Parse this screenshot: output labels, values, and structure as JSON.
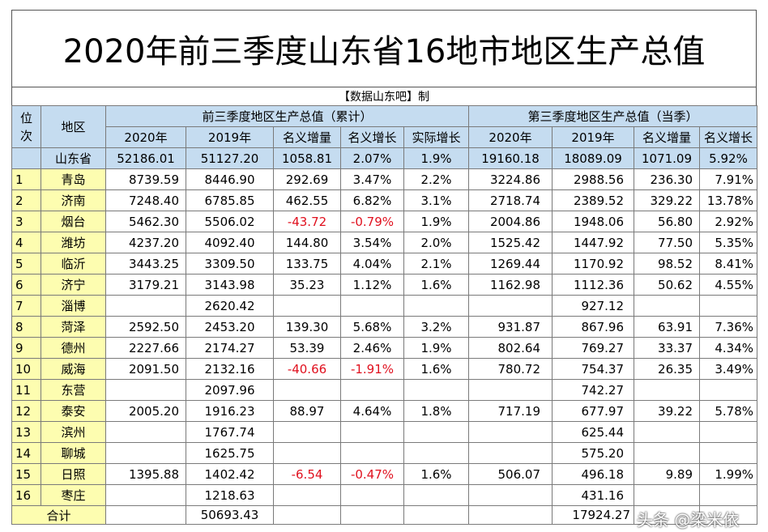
{
  "title": "2020年前三季度山东省16地市地区生产总值",
  "source": "【数据山东吧】制",
  "headers": {
    "rank": "位次",
    "region": "地区",
    "group_cumulative": "前三季度地区生产总值（累计）",
    "group_quarter": "第三季度地区生产总值（当季）",
    "sub": [
      "2020年",
      "2019年",
      "名义增量",
      "名义增长",
      "实际增长",
      "2020年",
      "2019年",
      "名义增量",
      "名义增长"
    ]
  },
  "province": {
    "name": "山东省",
    "values": [
      "52186.01",
      "51127.20",
      "1058.81",
      "2.07%",
      "1.9%",
      "19160.18",
      "18089.09",
      "1071.09",
      "5.92%"
    ]
  },
  "rows": [
    {
      "rank": "1",
      "name": "青岛",
      "v": [
        "8739.59",
        "8446.90",
        "292.69",
        "3.47%",
        "2.2%",
        "3224.86",
        "2988.56",
        "236.30",
        "7.91%"
      ]
    },
    {
      "rank": "2",
      "name": "济南",
      "v": [
        "7248.40",
        "6785.85",
        "462.55",
        "6.82%",
        "3.1%",
        "2718.74",
        "2389.52",
        "329.22",
        "13.78%"
      ]
    },
    {
      "rank": "3",
      "name": "烟台",
      "v": [
        "5462.30",
        "5506.02",
        "-43.72",
        "-0.79%",
        "1.9%",
        "2004.86",
        "1948.06",
        "56.80",
        "2.92%"
      ]
    },
    {
      "rank": "4",
      "name": "潍坊",
      "v": [
        "4237.20",
        "4092.40",
        "144.80",
        "3.54%",
        "2.0%",
        "1525.42",
        "1447.92",
        "77.50",
        "5.35%"
      ]
    },
    {
      "rank": "5",
      "name": "临沂",
      "v": [
        "3443.25",
        "3309.50",
        "133.75",
        "4.04%",
        "2.1%",
        "1269.44",
        "1170.92",
        "98.52",
        "8.41%"
      ]
    },
    {
      "rank": "6",
      "name": "济宁",
      "v": [
        "3179.21",
        "3143.98",
        "35.23",
        "1.12%",
        "1.6%",
        "1162.98",
        "1112.36",
        "50.62",
        "4.55%"
      ]
    },
    {
      "rank": "7",
      "name": "淄博",
      "v": [
        "",
        "2620.42",
        "",
        "",
        "",
        "",
        "927.12",
        "",
        ""
      ]
    },
    {
      "rank": "8",
      "name": "菏泽",
      "v": [
        "2592.50",
        "2453.20",
        "139.30",
        "5.68%",
        "3.2%",
        "931.87",
        "867.96",
        "63.91",
        "7.36%"
      ]
    },
    {
      "rank": "9",
      "name": "德州",
      "v": [
        "2227.66",
        "2174.27",
        "53.39",
        "2.46%",
        "1.9%",
        "802.64",
        "769.27",
        "33.37",
        "4.34%"
      ]
    },
    {
      "rank": "10",
      "name": "威海",
      "v": [
        "2091.50",
        "2132.16",
        "-40.66",
        "-1.91%",
        "1.6%",
        "780.72",
        "754.37",
        "26.35",
        "3.49%"
      ]
    },
    {
      "rank": "11",
      "name": "东营",
      "v": [
        "",
        "2097.96",
        "",
        "",
        "",
        "",
        "742.27",
        "",
        ""
      ]
    },
    {
      "rank": "12",
      "name": "泰安",
      "v": [
        "2005.20",
        "1916.23",
        "88.97",
        "4.64%",
        "1.8%",
        "717.19",
        "677.97",
        "39.22",
        "5.78%"
      ]
    },
    {
      "rank": "13",
      "name": "滨州",
      "v": [
        "",
        "1767.74",
        "",
        "",
        "",
        "",
        "625.44",
        "",
        ""
      ]
    },
    {
      "rank": "14",
      "name": "聊城",
      "v": [
        "",
        "1625.75",
        "",
        "",
        "",
        "",
        "575.20",
        "",
        ""
      ]
    },
    {
      "rank": "15",
      "name": "日照",
      "v": [
        "1395.88",
        "1402.42",
        "-6.54",
        "-0.47%",
        "1.6%",
        "506.07",
        "496.18",
        "9.89",
        "1.99%"
      ]
    },
    {
      "rank": "16",
      "name": "枣庄",
      "v": [
        "",
        "1218.63",
        "",
        "",
        "",
        "",
        "431.16",
        "",
        ""
      ]
    }
  ],
  "total": {
    "label": "合计",
    "v": [
      "",
      "50693.43",
      "",
      "",
      "",
      "",
      "17924.27",
      "",
      ""
    ]
  },
  "watermark": "头条 @梁米依",
  "colors": {
    "header_blue": "#c5dcf0",
    "region_yellow": "#fdfdb0",
    "negative_red": "#e0101e"
  }
}
